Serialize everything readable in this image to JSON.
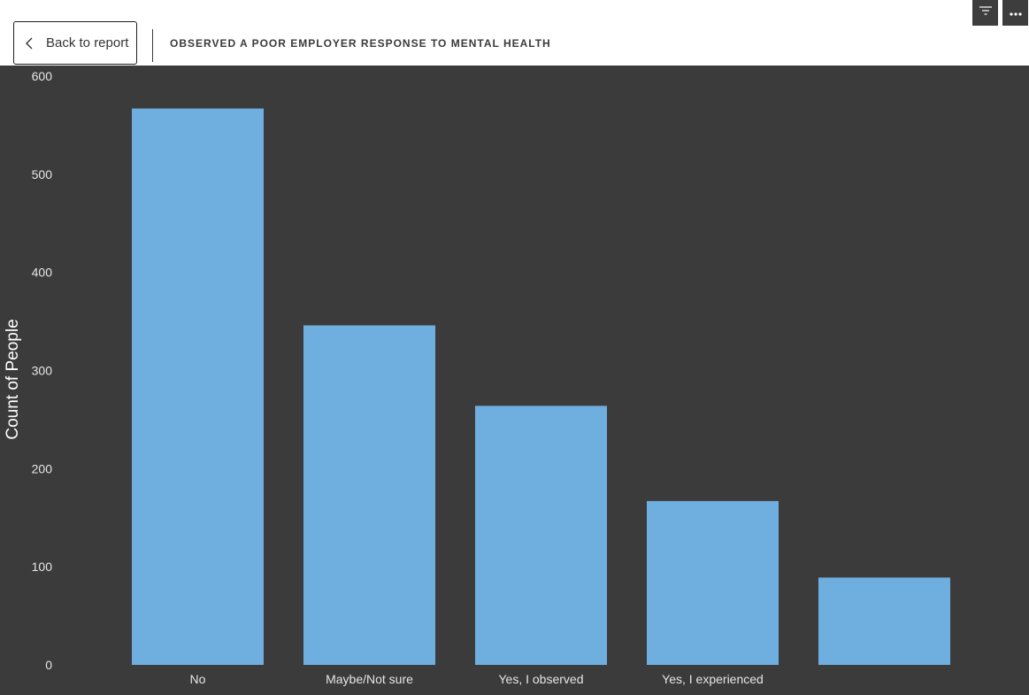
{
  "header": {
    "back_label": "Back to report",
    "title": "OBSERVED A POOR EMPLOYER RESPONSE TO MENTAL HEALTH"
  },
  "toolbar": {
    "filter_icon": "filter-icon",
    "more_icon": "more-options-icon"
  },
  "colors": {
    "bar": "#6fafe0",
    "background": "#3b3b3b",
    "text": "#e6e6e6"
  },
  "chart_data": {
    "type": "bar",
    "categories": [
      "No",
      "Maybe/Not sure",
      "Yes, I observed",
      "Yes, I experienced",
      ""
    ],
    "values": [
      567,
      346,
      264,
      167,
      89
    ],
    "title": "",
    "xlabel": "",
    "ylabel": "Count of People",
    "ylim": [
      0,
      600
    ],
    "yticks": [
      0,
      100,
      200,
      300,
      400,
      500,
      600
    ],
    "grid": false,
    "legend": "none"
  }
}
